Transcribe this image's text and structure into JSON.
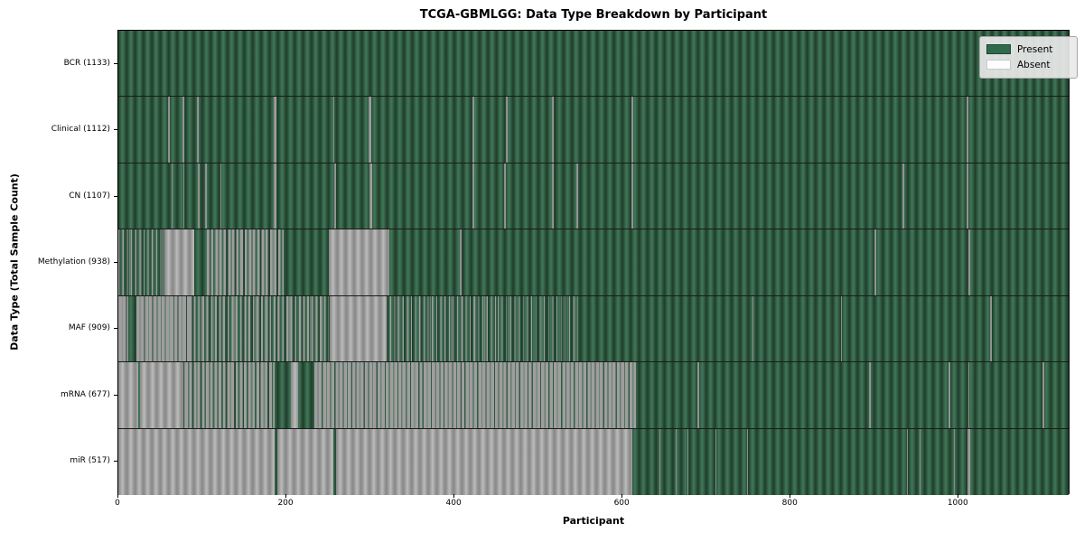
{
  "title": "TCGA-GBMLGG: Data Type Breakdown by Participant",
  "axes": {
    "xlabel": "Participant",
    "ylabel": "Data Type (Total Sample Count)",
    "x_ticks": [
      0,
      200,
      400,
      600,
      800,
      1000
    ],
    "xlim": [
      0,
      1133
    ]
  },
  "legend": {
    "items": [
      {
        "label": "Present",
        "color": "#2e6b4c",
        "border": "#1d4631"
      },
      {
        "label": "Absent",
        "color": "#ffffff",
        "border": "#c8c8c8"
      }
    ]
  },
  "colors": {
    "present_green": "#2e6b4c",
    "absent_gray": "#9e9e9e",
    "mixed_gray_strong": "#9e9e9e",
    "mixed_gray_soft": "rgba(158,158,158,0.55)",
    "separator": "#1b1b1b"
  },
  "chart_data": {
    "type": "heatmap",
    "title": "TCGA-GBMLGG: Data Type Breakdown by Participant",
    "xlabel": "Participant",
    "ylabel": "Data Type (Total Sample Count)",
    "legend_entries": [
      "Present",
      "Absent"
    ],
    "n_participants": 1133,
    "note": "Each row is a data type; green cells mark participants with data present, gray/white cells absent. Segments are [start,end] participant ranges; mixed segments are [start,end,absent_fraction].",
    "rows": [
      {
        "label": "BCR",
        "total": 1133,
        "tick_label": "BCR (1133)",
        "absent": [],
        "mixed": []
      },
      {
        "label": "Clinical",
        "total": 1112,
        "tick_label": "Clinical (1112)",
        "absent": [
          [
            59,
            61
          ],
          [
            76,
            78
          ],
          [
            94,
            96
          ],
          [
            185,
            188
          ],
          [
            256,
            257
          ],
          [
            298,
            301
          ],
          [
            421,
            423
          ],
          [
            461,
            463
          ],
          [
            516,
            518
          ],
          [
            611,
            613
          ],
          [
            1009,
            1011
          ]
        ],
        "mixed": []
      },
      {
        "label": "CN",
        "total": 1107,
        "tick_label": "CN (1107)",
        "absent": [
          [
            63,
            65
          ],
          [
            77,
            79
          ],
          [
            95,
            97
          ],
          [
            103,
            105
          ],
          [
            121,
            123
          ],
          [
            185,
            188
          ],
          [
            257,
            259
          ],
          [
            299,
            302
          ],
          [
            421,
            424
          ],
          [
            459,
            461
          ],
          [
            516,
            518
          ],
          [
            545,
            547
          ],
          [
            611,
            613
          ],
          [
            933,
            935
          ],
          [
            1009,
            1011
          ]
        ],
        "mixed": []
      },
      {
        "label": "Methylation",
        "total": 938,
        "tick_label": "Methylation (938)",
        "absent": [
          [
            55,
            90
          ],
          [
            250,
            322
          ],
          [
            406,
            408
          ],
          [
            900,
            902
          ],
          [
            1012,
            1014
          ]
        ],
        "mixed": [
          [
            0,
            55,
            0.25
          ],
          [
            105,
            197,
            0.55
          ]
        ]
      },
      {
        "label": "MAF",
        "total": 909,
        "tick_label": "MAF (909)",
        "absent": [
          [
            252,
            318
          ],
          [
            755,
            756
          ],
          [
            860,
            861
          ],
          [
            1037,
            1039
          ]
        ],
        "mixed": [
          [
            0,
            12,
            0.85
          ],
          [
            22,
            85,
            0.8
          ],
          [
            85,
            250,
            0.4
          ],
          [
            318,
            452,
            0.25
          ],
          [
            452,
            550,
            0.12
          ]
        ]
      },
      {
        "label": "mRNA",
        "total": 677,
        "tick_label": "mRNA (677)",
        "absent": [
          [
            0,
            24
          ],
          [
            26,
            77
          ],
          [
            79,
            80
          ],
          [
            205,
            214
          ],
          [
            689,
            691
          ],
          [
            893,
            895
          ],
          [
            988,
            990
          ],
          [
            1011,
            1013
          ],
          [
            1100,
            1102
          ]
        ],
        "mixed": [
          [
            80,
            186,
            0.6
          ],
          [
            233,
            616,
            0.75
          ]
        ]
      },
      {
        "label": "miR",
        "total": 517,
        "tick_label": "miR (517)",
        "absent": [
          [
            0,
            186
          ],
          [
            189,
            256
          ],
          [
            259,
            612
          ],
          [
            644,
            645
          ],
          [
            663,
            664
          ],
          [
            677,
            678
          ],
          [
            711,
            712
          ],
          [
            748,
            749
          ],
          [
            938,
            939
          ],
          [
            953,
            954
          ],
          [
            994,
            995
          ],
          [
            1010,
            1014
          ]
        ],
        "mixed": []
      }
    ]
  }
}
